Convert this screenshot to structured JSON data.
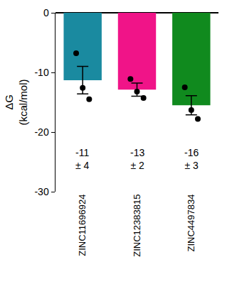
{
  "chart_data": {
    "type": "bar",
    "y_label": "ΔG\n(kcal/mol)",
    "categories": [
      "ZINC11696924",
      "ZINC12383815",
      "ZINC4497834"
    ],
    "values": [
      -11.3,
      -12.9,
      -15.5
    ],
    "errors": [
      2.3,
      1.1,
      1.6
    ],
    "points": [
      [
        -6.8,
        -12.6,
        -14.5
      ],
      [
        -11.1,
        -13.2,
        -14.3
      ],
      [
        -12.5,
        -16.3,
        -17.8
      ]
    ],
    "colors": [
      "#1a8aa0",
      "#f01488",
      "#108a1e"
    ],
    "annotations": [
      "-11\n± 4",
      "-13\n± 2",
      "-16\n± 3"
    ],
    "ylim": [
      -30,
      0
    ],
    "yticks": [
      -30,
      -20,
      -10,
      0
    ],
    "grid": false
  }
}
